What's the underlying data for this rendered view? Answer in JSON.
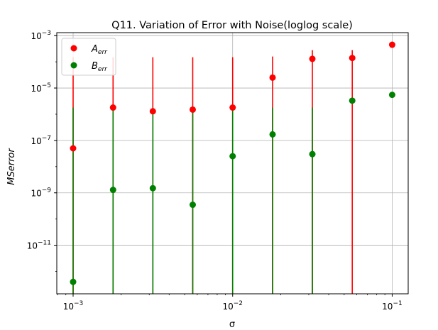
{
  "chart_data": {
    "type": "scatter",
    "title": "Q11. Variation of Error with Noise(loglog scale)",
    "xlabel": "σ",
    "ylabel": "MSerror",
    "x_scale": "log",
    "y_scale": "log",
    "xlim": [
      0.00079,
      0.126
    ],
    "ylim": [
      1.4e-13,
      0.0013
    ],
    "grid": true,
    "legend_position": "top-left",
    "x_ticks": [
      {
        "value": 0.001,
        "base": "10",
        "exp": "−3"
      },
      {
        "value": 0.01,
        "base": "10",
        "exp": "−2"
      },
      {
        "value": 0.1,
        "base": "10",
        "exp": "−1"
      }
    ],
    "y_ticks": [
      {
        "value": 1e-11,
        "base": "10",
        "exp": "−11"
      },
      {
        "value": 1e-09,
        "base": "10",
        "exp": "−9"
      },
      {
        "value": 1e-07,
        "base": "10",
        "exp": "−7"
      },
      {
        "value": 1e-05,
        "base": "10",
        "exp": "−5"
      },
      {
        "value": 0.001,
        "base": "10",
        "exp": "−3"
      }
    ],
    "x": [
      0.001,
      0.00178,
      0.00316,
      0.00562,
      0.01,
      0.0178,
      0.0316,
      0.0562,
      0.1
    ],
    "series": [
      {
        "name": "A",
        "name_sub": "err",
        "color": "#ff0000",
        "values": [
          5e-08,
          1.8e-06,
          1.3e-06,
          1.5e-06,
          1.8e-06,
          2.5e-05,
          0.00013,
          0.00014,
          0.00045
        ],
        "err_low": [
          1.4e-13,
          1.4e-13,
          1.4e-13,
          1.4e-13,
          1.4e-13,
          1.4e-13,
          1.4e-13,
          1.4e-13,
          null
        ],
        "err_high": [
          0.00015,
          0.00015,
          0.00015,
          0.00015,
          0.00015,
          0.00016,
          0.00028,
          0.00028,
          null
        ]
      },
      {
        "name": "B",
        "name_sub": "err",
        "color": "#008000",
        "values": [
          4e-13,
          1.3e-09,
          1.5e-09,
          3.5e-10,
          2.5e-08,
          1.7e-07,
          3e-08,
          3.3e-06,
          5.5e-06
        ],
        "err_low": [
          1.4e-13,
          1.4e-13,
          1.4e-13,
          1.4e-13,
          1.4e-13,
          1.4e-13,
          1.4e-13,
          null,
          null
        ],
        "err_high": [
          1.8e-06,
          1.8e-06,
          1.8e-06,
          1.8e-06,
          1.8e-06,
          1.8e-06,
          1.8e-06,
          null,
          null
        ]
      }
    ]
  }
}
